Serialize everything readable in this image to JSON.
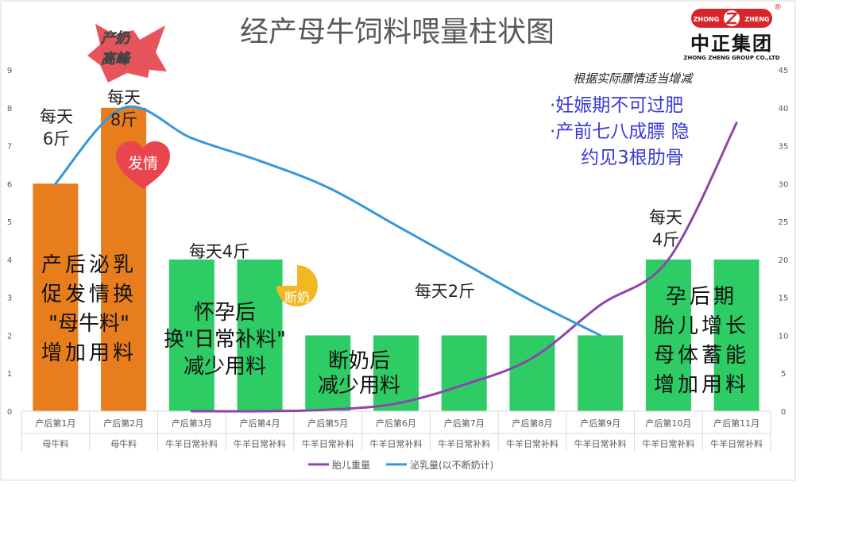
{
  "chart_data": {
    "type": "bar",
    "title": "经产母牛饲料喂量柱状图",
    "categories": [
      "产后第1月",
      "产后第2月",
      "产后第3月",
      "产后第4月",
      "产后第5月",
      "产后第6月",
      "产后第7月",
      "产后第8月",
      "产后第9月",
      "产后第10月",
      "产后第11月"
    ],
    "subcategories": [
      "母牛料",
      "母牛料",
      "牛羊日常补料",
      "牛羊日常补料",
      "牛羊日常补料",
      "牛羊日常补料",
      "牛羊日常补料",
      "牛羊日常补料",
      "牛羊日常补料",
      "牛羊日常补料",
      "牛羊日常补料"
    ],
    "bar_values": [
      6,
      8,
      4,
      4,
      2,
      2,
      2,
      2,
      2,
      4,
      4
    ],
    "bar_colors": [
      "#e87d1e",
      "#e87d1e",
      "#2ecc64",
      "#2ecc64",
      "#2ecc64",
      "#2ecc64",
      "#2ecc64",
      "#2ecc64",
      "#2ecc64",
      "#2ecc64",
      "#2ecc64"
    ],
    "y_left": {
      "min": 0,
      "max": 9,
      "ticks": [
        "0",
        "1",
        "2",
        "3",
        "4",
        "5",
        "6",
        "7",
        "8",
        "9"
      ]
    },
    "y_right": {
      "min": 0,
      "max": 45,
      "ticks": [
        "0",
        "5",
        "10",
        "15",
        "20",
        "25",
        "30",
        "35",
        "40",
        "45"
      ]
    },
    "series": [
      {
        "name": "胎儿重量",
        "axis": "right",
        "color": "#8e44ad",
        "values": [
          null,
          null,
          0,
          0,
          0.2,
          1,
          3.5,
          7,
          14,
          20,
          38
        ]
      },
      {
        "name": "泌乳量(以不断奶计)",
        "axis": "left",
        "color": "#3498db",
        "values": [
          6,
          8,
          7.2,
          6.6,
          5.9,
          4.9,
          3.9,
          2.9,
          2.0,
          null,
          null
        ]
      }
    ],
    "legend_position": "bottom",
    "grid": false
  },
  "annotations": {
    "peak_star": [
      "产奶",
      "高峰"
    ],
    "estrus_heart": "发情",
    "weaning_badge": "断奶",
    "feed_m1": [
      "每天",
      "6斤"
    ],
    "feed_m2": [
      "每天",
      "8斤"
    ],
    "feed_m3_4": "每天4斤",
    "feed_m5_9": "每天2斤",
    "feed_m10_11": [
      "每天",
      "4斤"
    ],
    "stage_lactation": [
      "产后泌乳",
      "促发情换",
      "\"母牛料\"",
      "增加用料"
    ],
    "stage_pregnancy": [
      "怀孕后",
      "换\"日常补料\"",
      "减少用料"
    ],
    "stage_weaning": [
      "断奶后",
      "减少用料"
    ],
    "stage_late_pregnancy": [
      "孕后期",
      "胎儿增长",
      "母体蓄能",
      "增加用料"
    ],
    "condition_note": "根据实际膘情适当增减",
    "condition_points": [
      "·妊娠期不可过肥",
      "·产前七八成膘 隐",
      "约见3根肋骨"
    ]
  },
  "logo": {
    "badge_left": "ZHONG",
    "badge_right": "ZHENG",
    "registered": "®",
    "name": "中正集团",
    "subtitle": "ZHONG ZHENG GROUP CO.,LTD",
    "colors": {
      "red": "#d6262b",
      "black": "#111111"
    }
  }
}
